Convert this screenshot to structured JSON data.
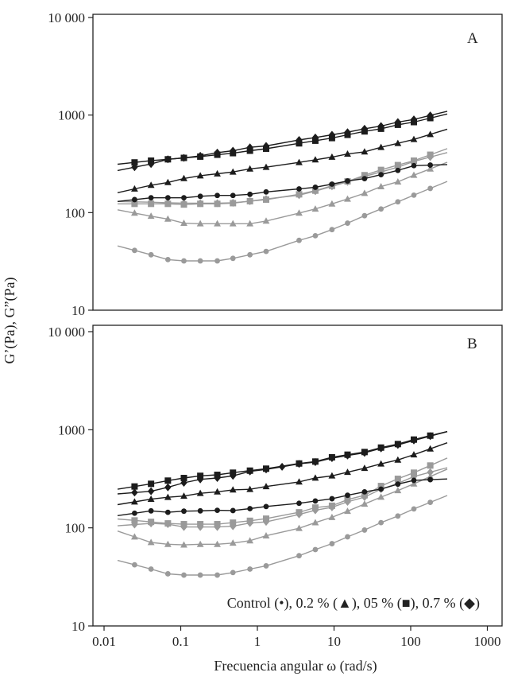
{
  "chart_data": {
    "type": "line",
    "xlabel": "Frecuencia angular ω (rad/s)",
    "ylabel": "G’(Pa), G”(Pa)",
    "xscale": "log",
    "yscale": "log",
    "xlim": [
      0.01,
      1000
    ],
    "ylim": [
      10,
      10000
    ],
    "x_ticks": [
      "0.01",
      "0.1",
      "1",
      "10",
      "100",
      "1000"
    ],
    "x_tick_values": [
      0.01,
      0.1,
      1,
      10,
      100,
      1000
    ],
    "y_ticks": [
      "10 000",
      "1000",
      "100",
      "10"
    ],
    "y_tick_values": [
      10000,
      1000,
      100,
      10
    ],
    "grid": false,
    "legend": "Control (•), 0.2 % (▲), 05 % (■), 0.7 % (◆)",
    "legend_placement": "bottom-right of panel B",
    "x": [
      0.025,
      0.041,
      0.068,
      0.11,
      0.18,
      0.3,
      0.48,
      0.8,
      1.3,
      2.1,
      3.5,
      5.7,
      9.4,
      15,
      25,
      41,
      68,
      110,
      180
    ],
    "fit_range": [
      0.015,
      300
    ],
    "colors": {
      "G_prime": "#1c1c1c",
      "G_double_prime": "#9a9a9a"
    },
    "panels": [
      {
        "label": "A",
        "series": [
          {
            "name": "0.7 % G'",
            "marker": "diamond",
            "modulus": "G_prime",
            "values": [
              292,
              315,
              352,
              364,
              382,
              412,
              431,
              467,
              482,
              null,
              556,
              589,
              627,
              667,
              724,
              771,
              847,
              902,
              991
            ]
          },
          {
            "name": "05 % G'",
            "marker": "square",
            "modulus": "G_prime",
            "values": [
              327,
              341,
              352,
              364,
              375,
              392,
              407,
              431,
              452,
              null,
              513,
              546,
              581,
              627,
              680,
              724,
              795,
              847,
              931
            ]
          },
          {
            "name": "0.2 % G'",
            "marker": "triangle",
            "modulus": "G_prime",
            "values": [
              175,
              191,
              204,
              224,
              239,
              250,
              261,
              281,
              292,
              null,
              327,
              348,
              371,
              399,
              420,
              467,
              513,
              563,
              634
            ]
          },
          {
            "name": "Control G'",
            "marker": "circle",
            "modulus": "G_prime",
            "values": [
              136,
              142,
              142,
              142,
              147,
              150,
              150,
              154,
              163,
              null,
              175,
              182,
              196,
              211,
              223,
              245,
              271,
              303,
              307
            ]
          },
          {
            "name": "0.7 % G''",
            "marker": "diamond",
            "modulus": "G_double_prime",
            "values": [
              129,
              128,
              126,
              125,
              125,
              125,
              126,
              131,
              138,
              null,
              151,
              166,
              186,
              207,
              235,
              261,
              292,
              335,
              371
            ]
          },
          {
            "name": "05 % G''",
            "marker": "square",
            "modulus": "G_double_prime",
            "values": [
              123,
              123,
              123,
              121,
              123,
              123,
              125,
              131,
              136,
              null,
              154,
              168,
              188,
              209,
              242,
              274,
              307,
              341,
              392
            ]
          },
          {
            "name": "0.2 % G''",
            "marker": "triangle",
            "modulus": "G_double_prime",
            "values": [
              99,
              92,
              86,
              78,
              77,
              77,
              77,
              77,
              82,
              null,
              99,
              109,
              123,
              138,
              158,
              185,
              207,
              242,
              281
            ]
          },
          {
            "name": "Control G''",
            "marker": "circle",
            "modulus": "G_double_prime",
            "values": [
              41,
              37,
              33,
              32,
              32,
              32,
              34,
              37,
              40,
              null,
              52,
              58,
              67,
              78,
              93,
              109,
              129,
              151,
              177
            ]
          }
        ]
      },
      {
        "label": "B",
        "series": [
          {
            "name": "0.7 % G'",
            "marker": "diamond",
            "modulus": "G_prime",
            "values": [
              229,
              236,
              259,
              288,
              312,
              322,
              339,
              376,
              394,
              419,
              449,
              468,
              514,
              546,
              582,
              646,
              701,
              778,
              861
            ]
          },
          {
            "name": "05 % G'",
            "marker": "square",
            "modulus": "G_prime",
            "values": [
              264,
              281,
              303,
              322,
              339,
              347,
              365,
              383,
              401,
              null,
              453,
              474,
              524,
              557,
              593,
              658,
              715,
              794,
              871
            ]
          },
          {
            "name": "0.2 % G'",
            "marker": "triangle",
            "modulus": "G_prime",
            "values": [
              184,
              196,
              205,
              211,
              225,
              233,
              244,
              247,
              264,
              null,
              294,
              322,
              339,
              369,
              405,
              449,
              492,
              557,
              639
            ]
          },
          {
            "name": "Control G'",
            "marker": "circle",
            "modulus": "G_prime",
            "values": [
              141,
              149,
              144,
              148,
              149,
              151,
              150,
              157,
              165,
              null,
              178,
              188,
              198,
              215,
              233,
              248,
              279,
              305,
              310
            ]
          },
          {
            "name": "0.7 % G''",
            "marker": "diamond",
            "modulus": "G_double_prime",
            "values": [
              108,
              111,
              109,
              102,
              102,
              102,
              104,
              112,
              115,
              null,
              137,
              151,
              162,
              184,
              206,
              248,
              284,
              333,
              369
            ]
          },
          {
            "name": "05 % G''",
            "marker": "square",
            "modulus": "G_double_prime",
            "values": [
              119,
              115,
              111,
              109,
              109,
              109,
              113,
              118,
              124,
              null,
              144,
              161,
              168,
              194,
              215,
              267,
              316,
              365,
              432
            ]
          },
          {
            "name": "0.2 % G''",
            "marker": "triangle",
            "modulus": "G_double_prime",
            "values": [
              81,
              71,
              68,
              67,
              68,
              68,
              70,
              74,
              83,
              null,
              99,
              113,
              128,
              148,
              175,
              206,
              240,
              281,
              333
            ]
          },
          {
            "name": "Control G''",
            "marker": "circle",
            "modulus": "G_double_prime",
            "values": [
              42,
              38,
              34,
              33,
              33,
              33,
              35,
              38,
              41,
              null,
              52,
              60,
              69,
              81,
              95,
              113,
              132,
              156,
              182
            ]
          }
        ]
      }
    ]
  }
}
